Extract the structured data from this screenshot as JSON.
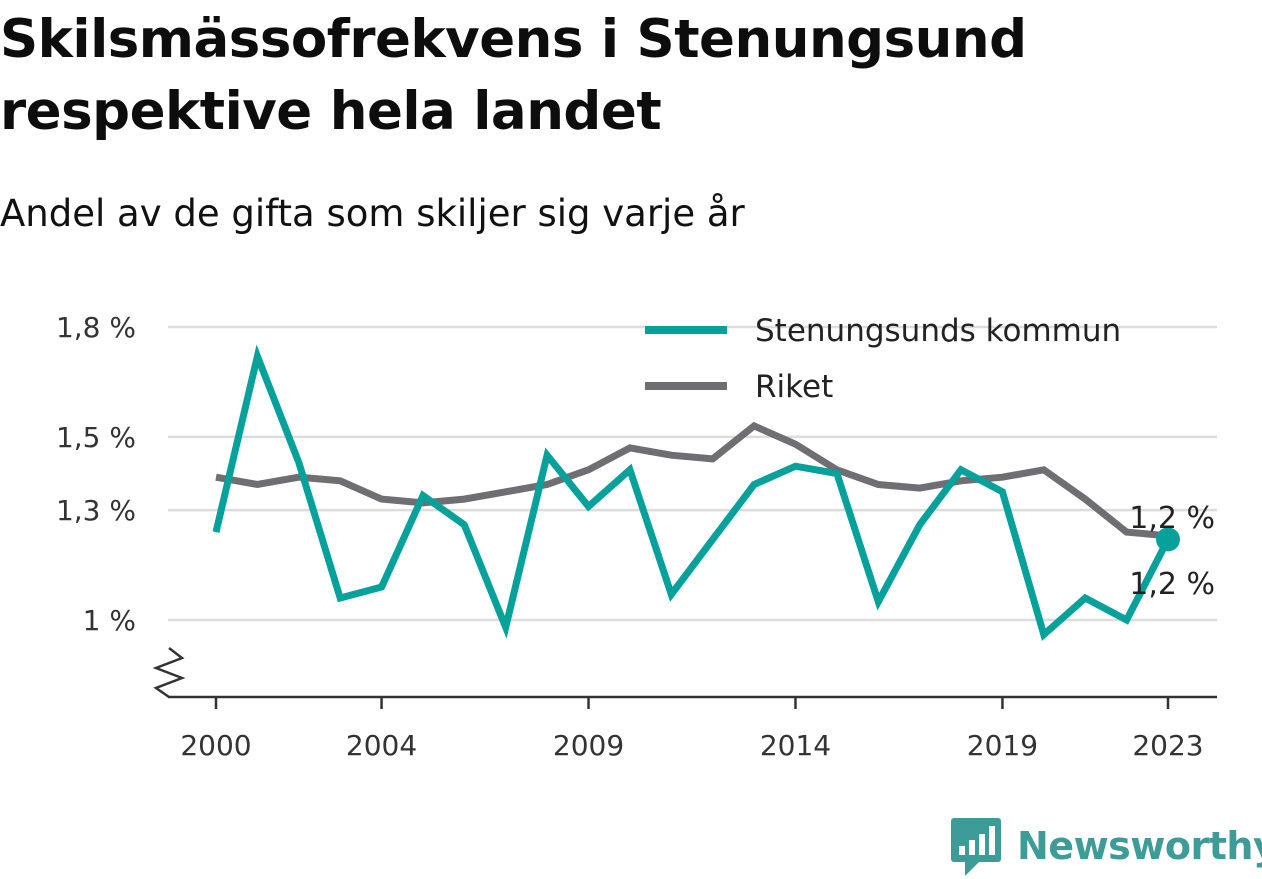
{
  "header": {
    "title": "Skilsmässofrekvens i Stenungsund respektive hela landet",
    "subtitle": "Andel av de gifta som skiljer sig varje år"
  },
  "brand": {
    "name": "Newsworthy",
    "icon": "newsworthy-logo-icon",
    "color": "#3d9c97"
  },
  "chart_data": {
    "type": "line",
    "title": "Skilsmässofrekvens i Stenungsund respektive hela landet",
    "subtitle": "Andel av de gifta som skiljer sig varje år",
    "xlabel": "",
    "ylabel": "",
    "x": [
      2000,
      2001,
      2002,
      2003,
      2004,
      2005,
      2006,
      2007,
      2008,
      2009,
      2010,
      2011,
      2012,
      2013,
      2014,
      2015,
      2016,
      2017,
      2018,
      2019,
      2020,
      2021,
      2022,
      2023
    ],
    "x_ticks": [
      2000,
      2004,
      2009,
      2014,
      2019,
      2023
    ],
    "y_ticks": [
      1.0,
      1.3,
      1.5,
      1.8
    ],
    "y_tick_labels": [
      "1 %",
      "1,3 %",
      "1,5 %",
      "1,8 %"
    ],
    "y_axis_broken": true,
    "grid": true,
    "legend_position": "top-right",
    "series": [
      {
        "name": "Stenungsunds kommun",
        "color": "#06a19a",
        "values": [
          1.24,
          1.72,
          1.43,
          1.06,
          1.09,
          1.34,
          1.26,
          0.98,
          1.45,
          1.31,
          1.41,
          1.07,
          1.22,
          1.37,
          1.42,
          1.4,
          1.05,
          1.26,
          1.41,
          1.35,
          0.96,
          1.06,
          1.0,
          1.22
        ],
        "end_label": "1,2 %"
      },
      {
        "name": "Riket",
        "color": "#6f6e73",
        "values": [
          1.39,
          1.37,
          1.39,
          1.38,
          1.33,
          1.32,
          1.33,
          1.35,
          1.37,
          1.41,
          1.47,
          1.45,
          1.44,
          1.53,
          1.48,
          1.41,
          1.37,
          1.36,
          1.38,
          1.39,
          1.41,
          1.33,
          1.24,
          1.23
        ],
        "end_label": "1,2 %"
      }
    ]
  }
}
